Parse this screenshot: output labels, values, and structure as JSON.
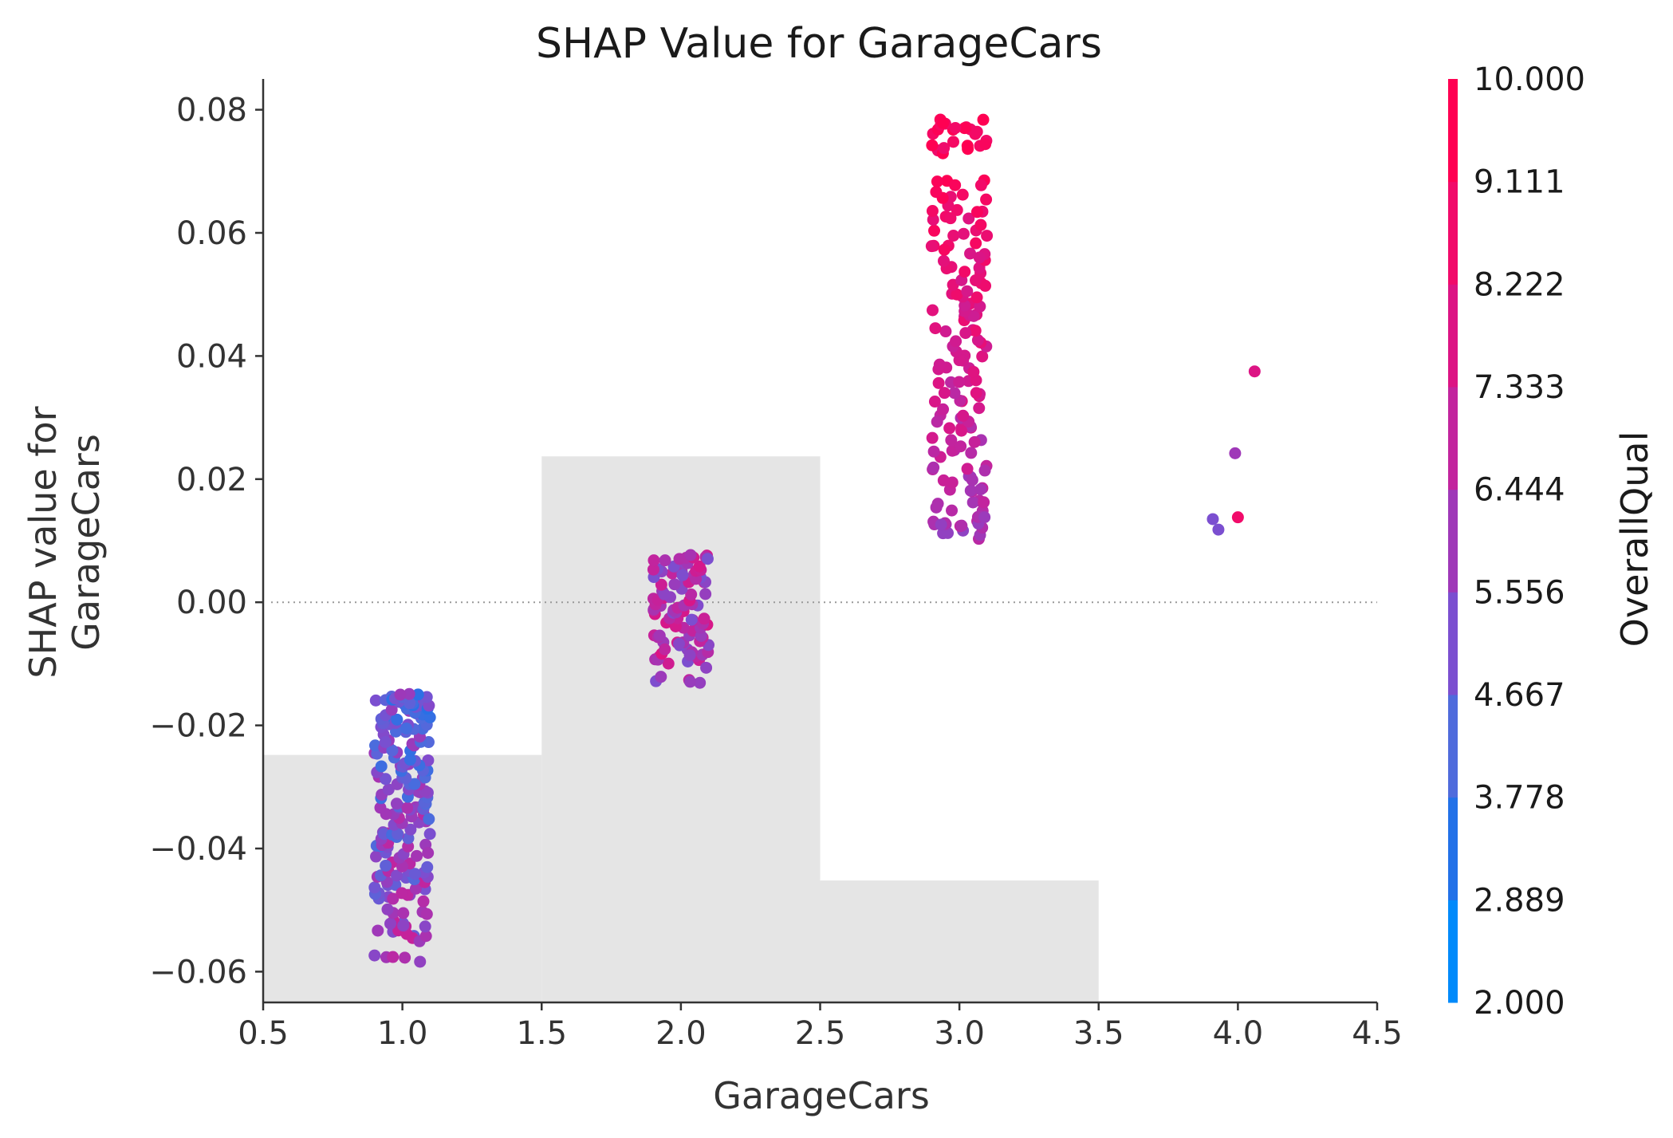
{
  "chart_data": {
    "type": "scatter",
    "title": "SHAP Value for GarageCars",
    "xlabel": "GarageCars",
    "ylabel_lines": [
      "SHAP value for",
      "GarageCars"
    ],
    "xlim": [
      0.5,
      4.5
    ],
    "ylim": [
      -0.065,
      0.085
    ],
    "x_ticks": [
      0.5,
      1.0,
      1.5,
      2.0,
      2.5,
      3.0,
      3.5,
      4.0,
      4.5
    ],
    "x_tick_labels": [
      "0.5",
      "1.0",
      "1.5",
      "2.0",
      "2.5",
      "3.0",
      "3.5",
      "4.0",
      "4.5"
    ],
    "y_ticks": [
      0.08,
      0.06,
      0.04,
      0.02,
      0.0,
      -0.02,
      -0.04,
      -0.06
    ],
    "y_tick_labels": [
      "0.08",
      "0.06",
      "0.04",
      "0.02",
      "0.00",
      "−0.02",
      "−0.04",
      "−0.06"
    ],
    "zero_line": true,
    "background_histogram": [
      {
        "x0": 0.5,
        "x1": 1.5,
        "top": -0.0248
      },
      {
        "x0": 1.5,
        "x1": 2.5,
        "top": 0.0237
      },
      {
        "x0": 2.5,
        "x1": 3.5,
        "top": -0.0452
      },
      {
        "x0": 3.5,
        "x1": 4.5,
        "top": -0.0648
      }
    ],
    "colorbar": {
      "label": "OverallQual",
      "min": 2.0,
      "max": 10.0,
      "tick_labels": [
        "10.000",
        "9.111",
        "8.222",
        "7.333",
        "6.444",
        "5.556",
        "4.667",
        "3.778",
        "2.889",
        "2.000"
      ],
      "colors": [
        "#008afb",
        "#2271e8",
        "#4f6bdc",
        "#7b4fd0",
        "#9f38b8",
        "#c2249e",
        "#dc1484",
        "#f10b6a",
        "#ff0052"
      ]
    },
    "series": [
      {
        "x": 1.0,
        "cluster": "GarageCars=1",
        "y": [
          -0.058,
          -0.0545,
          -0.053,
          -0.052,
          -0.0505,
          -0.048,
          -0.047,
          -0.0465,
          -0.045,
          -0.045,
          -0.044,
          -0.043,
          -0.041,
          -0.04,
          -0.039,
          -0.038,
          -0.037,
          -0.036,
          -0.035,
          -0.034,
          -0.033,
          -0.032,
          -0.031,
          -0.03,
          -0.029,
          -0.028,
          -0.027,
          -0.026,
          -0.025,
          -0.024,
          -0.023,
          -0.022,
          -0.021,
          -0.02,
          -0.019,
          -0.0185,
          -0.018,
          -0.017,
          -0.0165,
          -0.0155,
          -0.0155
        ]
      },
      {
        "x": 2.0,
        "cluster": "GarageCars=2",
        "y": [
          -0.0125,
          -0.01,
          -0.009,
          -0.008,
          -0.007,
          -0.006,
          -0.005,
          -0.004,
          -0.003,
          -0.002,
          -0.001,
          0.0,
          0.001,
          0.002,
          0.003,
          0.004,
          0.005,
          0.006,
          0.007,
          0.0075
        ]
      },
      {
        "x": 3.0,
        "cluster": "GarageCars=3",
        "y": [
          0.011,
          0.0125,
          0.013,
          0.0145,
          0.016,
          0.018,
          0.02,
          0.022,
          0.024,
          0.026,
          0.028,
          0.03,
          0.032,
          0.034,
          0.036,
          0.038,
          0.04,
          0.042,
          0.044,
          0.046,
          0.048,
          0.05,
          0.052,
          0.054,
          0.056,
          0.058,
          0.06,
          0.062,
          0.064,
          0.066,
          0.068,
          0.0735,
          0.0745,
          0.0765,
          0.0775,
          0.078
        ]
      },
      {
        "x": 4.0,
        "cluster": "GarageCars=4",
        "points": [
          {
            "x": 3.91,
            "y": 0.0135,
            "overallqual": 5
          },
          {
            "x": 3.93,
            "y": 0.0118,
            "overallqual": 5
          },
          {
            "x": 3.99,
            "y": 0.0242,
            "overallqual": 6
          },
          {
            "x": 4.0,
            "y": 0.0138,
            "overallqual": 9
          },
          {
            "x": 4.06,
            "y": 0.0375,
            "overallqual": 8
          }
        ]
      }
    ]
  }
}
